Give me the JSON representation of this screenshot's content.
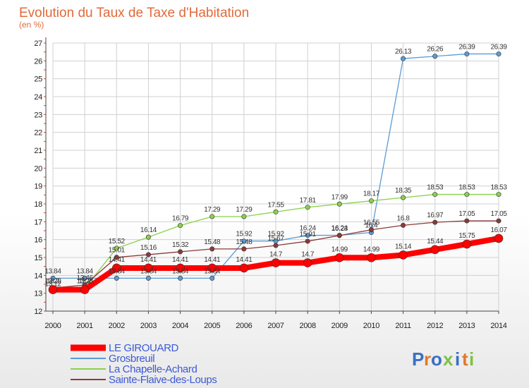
{
  "chart_data": {
    "type": "line",
    "title": "Evolution du Taux de Taxe d'Habitation",
    "unit_label": "(en %)",
    "x": [
      "2000",
      "2001",
      "2002",
      "2003",
      "2004",
      "2005",
      "2006",
      "2007",
      "2008",
      "2009",
      "2010",
      "2011",
      "2012",
      "2013",
      "2014"
    ],
    "ylim": [
      12,
      27
    ],
    "yticks": [
      12,
      13,
      14,
      15,
      16,
      17,
      18,
      19,
      20,
      21,
      22,
      23,
      24,
      25,
      26,
      27
    ],
    "grid": true,
    "legend_position": "bottom-left",
    "series": [
      {
        "name": "Grosbreuil",
        "color": "#5b9bd5",
        "width": 1.3,
        "marker_r": 3.2,
        "values": [
          13.84,
          13.84,
          13.84,
          13.84,
          13.84,
          13.84,
          15.92,
          15.92,
          16.24,
          16.24,
          16.4,
          26.13,
          26.26,
          26.39,
          26.39
        ],
        "labels": [
          "13.84",
          "13.84",
          "13.84",
          "13.84",
          "13.84",
          "13.84",
          "15.92",
          "15.92",
          "16.24",
          "16.24",
          "16.4",
          "26.13",
          "26.26",
          "26.39",
          "26.39"
        ]
      },
      {
        "name": "La Chapelle-Achard",
        "color": "#8bd14b",
        "width": 1.3,
        "marker_r": 3.2,
        "values": [
          13.12,
          13.28,
          15.52,
          16.14,
          16.79,
          17.29,
          17.29,
          17.55,
          17.81,
          17.99,
          18.17,
          18.35,
          18.53,
          18.53,
          18.53
        ],
        "labels": [
          "13.12",
          "13.28",
          "15.52",
          "16.14",
          "16.79",
          "17.29",
          "17.29",
          "17.55",
          "17.81",
          "17.99",
          "18.17",
          "18.35",
          "18.53",
          "18.53",
          "18.53"
        ]
      },
      {
        "name": "Sainte-Flaive-des-Loups",
        "color": "#8b3a3a",
        "width": 1.3,
        "marker_r": 3.2,
        "values": [
          13.29,
          13.46,
          15.01,
          15.16,
          15.32,
          15.48,
          15.48,
          15.67,
          15.91,
          16.23,
          16.55,
          16.8,
          16.97,
          17.05,
          17.05
        ],
        "labels": [
          "13.29",
          "13.46",
          "15.01",
          "15.16",
          "15.32",
          "15.48",
          "15.48",
          "15.67",
          "15.91",
          "16.23",
          "16.55",
          "16.8",
          "16.97",
          "17.05",
          "17.05"
        ]
      },
      {
        "name": "LE GIROUARD",
        "color": "#ff0000",
        "width": 8,
        "marker_r": 6,
        "values": [
          13.2,
          13.2,
          14.41,
          14.41,
          14.41,
          14.41,
          14.41,
          14.7,
          14.7,
          14.99,
          14.99,
          15.14,
          15.44,
          15.75,
          16.07
        ],
        "labels": [
          "13.2",
          "13.2",
          "14.41",
          "14.41",
          "14.41",
          "14.41",
          "14.41",
          "14.7",
          "14.7",
          "14.99",
          "14.99",
          "15.14",
          "15.44",
          "15.75",
          "16.07"
        ]
      }
    ],
    "legend": [
      "LE GIROUARD",
      "Grosbreuil",
      "La Chapelle-Achard",
      "Sainte-Flaive-des-Loups"
    ]
  },
  "brand": {
    "text": "Proxiti",
    "letters": [
      "P",
      "r",
      "o",
      "x",
      "i",
      "t",
      "i"
    ]
  },
  "colors": {
    "title": "#e06a3a",
    "grid": "#d0d0d0",
    "axis": "#444444"
  }
}
